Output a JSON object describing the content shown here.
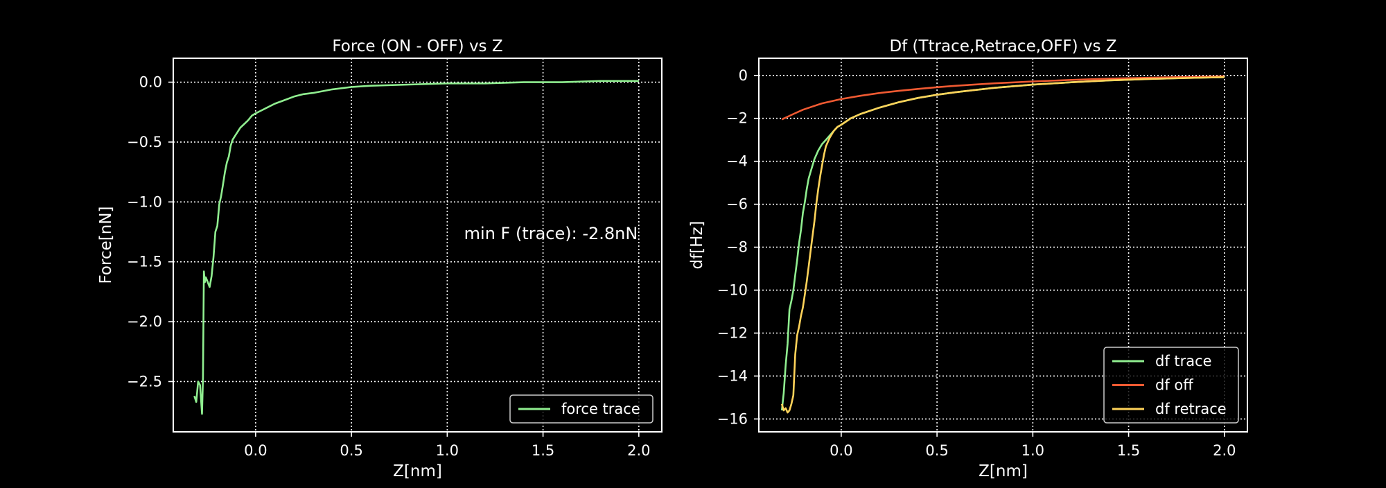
{
  "colors": {
    "background": "#000000",
    "axes": "#ffffff",
    "grid": "#ffffff",
    "trace": "#90ee90",
    "off": "#f05a32",
    "retrace": "#ffd35a"
  },
  "chart_data": [
    {
      "type": "line",
      "title": "Force (ON - OFF) vs Z",
      "xlabel": "Z[nm]",
      "ylabel": "Force[nN]",
      "xlim": [
        -0.43,
        2.12
      ],
      "ylim": [
        -2.92,
        0.2
      ],
      "xticks": [
        0.0,
        0.5,
        1.0,
        1.5,
        2.0
      ],
      "xtick_labels": [
        "0.0",
        "0.5",
        "1.0",
        "1.5",
        "2.0"
      ],
      "yticks": [
        0.0,
        -0.5,
        -1.0,
        -1.5,
        -2.0,
        -2.5
      ],
      "ytick_labels": [
        "0.0",
        "−0.5",
        "−1.0",
        "−1.5",
        "−2.0",
        "−2.5"
      ],
      "grid": true,
      "legend": "lower-right",
      "annotation": "min F (trace): -2.8nN",
      "series": [
        {
          "name": "force trace",
          "color": "#90ee90",
          "x": [
            -0.32,
            -0.31,
            -0.3,
            -0.29,
            -0.28,
            -0.275,
            -0.27,
            -0.265,
            -0.26,
            -0.25,
            -0.24,
            -0.23,
            -0.22,
            -0.21,
            -0.2,
            -0.19,
            -0.18,
            -0.17,
            -0.16,
            -0.15,
            -0.14,
            -0.13,
            -0.12,
            -0.1,
            -0.08,
            -0.06,
            -0.04,
            -0.02,
            0.0,
            0.05,
            0.1,
            0.15,
            0.2,
            0.25,
            0.3,
            0.4,
            0.5,
            0.6,
            0.8,
            1.0,
            1.2,
            1.4,
            1.6,
            1.8,
            2.0
          ],
          "y": [
            -2.62,
            -2.67,
            -2.5,
            -2.53,
            -2.77,
            -2.47,
            -1.58,
            -1.67,
            -1.63,
            -1.67,
            -1.71,
            -1.62,
            -1.46,
            -1.25,
            -1.2,
            -1.02,
            -0.95,
            -0.85,
            -0.75,
            -0.67,
            -0.62,
            -0.53,
            -0.48,
            -0.43,
            -0.38,
            -0.35,
            -0.32,
            -0.28,
            -0.26,
            -0.22,
            -0.18,
            -0.15,
            -0.12,
            -0.1,
            -0.09,
            -0.06,
            -0.04,
            -0.03,
            -0.02,
            -0.01,
            -0.01,
            0.0,
            0.0,
            0.01,
            0.01
          ]
        }
      ]
    },
    {
      "type": "line",
      "title": "Df (Ttrace,Retrace,OFF) vs Z",
      "xlabel": "Z[nm]",
      "ylabel": "df[Hz]",
      "xlim": [
        -0.43,
        2.12
      ],
      "ylim": [
        -16.6,
        0.8
      ],
      "xticks": [
        0.0,
        0.5,
        1.0,
        1.5,
        2.0
      ],
      "xtick_labels": [
        "0.0",
        "0.5",
        "1.0",
        "1.5",
        "2.0"
      ],
      "yticks": [
        0,
        -2,
        -4,
        -6,
        -8,
        -10,
        -12,
        -14,
        -16
      ],
      "ytick_labels": [
        "0",
        "−2",
        "−4",
        "−6",
        "−8",
        "−10",
        "−12",
        "−14",
        "−16"
      ],
      "grid": true,
      "legend": "lower-right",
      "series": [
        {
          "name": "df trace",
          "color": "#90ee90",
          "x": [
            -0.31,
            -0.3,
            -0.29,
            -0.28,
            -0.27,
            -0.26,
            -0.25,
            -0.24,
            -0.23,
            -0.22,
            -0.21,
            -0.2,
            -0.19,
            -0.18,
            -0.17,
            -0.16,
            -0.15,
            -0.14,
            -0.12,
            -0.1,
            -0.08,
            -0.06,
            -0.04,
            -0.02,
            0.0,
            0.05,
            0.1,
            0.2,
            0.3,
            0.4,
            0.5,
            0.6,
            0.8,
            1.0,
            1.2,
            1.4,
            1.6,
            1.8,
            2.0
          ],
          "y": [
            -15.6,
            -14.8,
            -13.5,
            -12.5,
            -10.9,
            -10.5,
            -10.0,
            -9.3,
            -8.6,
            -7.8,
            -7.2,
            -6.4,
            -5.9,
            -5.3,
            -4.8,
            -4.5,
            -4.2,
            -3.9,
            -3.5,
            -3.2,
            -3.0,
            -2.8,
            -2.6,
            -2.4,
            -2.3,
            -2.0,
            -1.8,
            -1.5,
            -1.25,
            -1.05,
            -0.9,
            -0.78,
            -0.58,
            -0.43,
            -0.32,
            -0.23,
            -0.17,
            -0.12,
            -0.08
          ]
        },
        {
          "name": "df off",
          "color": "#f05a32",
          "x": [
            -0.31,
            -0.25,
            -0.2,
            -0.15,
            -0.1,
            -0.05,
            0.0,
            0.1,
            0.2,
            0.3,
            0.4,
            0.5,
            0.6,
            0.8,
            1.0,
            1.2,
            1.4,
            1.6,
            1.8,
            2.0
          ],
          "y": [
            -2.05,
            -1.8,
            -1.6,
            -1.45,
            -1.3,
            -1.2,
            -1.1,
            -0.95,
            -0.82,
            -0.72,
            -0.63,
            -0.55,
            -0.48,
            -0.37,
            -0.28,
            -0.21,
            -0.15,
            -0.11,
            -0.07,
            -0.04
          ]
        },
        {
          "name": "df retrace",
          "color": "#ffd35a",
          "x": [
            -0.31,
            -0.3,
            -0.29,
            -0.28,
            -0.27,
            -0.26,
            -0.25,
            -0.24,
            -0.23,
            -0.22,
            -0.21,
            -0.2,
            -0.19,
            -0.18,
            -0.17,
            -0.16,
            -0.15,
            -0.14,
            -0.13,
            -0.12,
            -0.11,
            -0.1,
            -0.09,
            -0.08,
            -0.06,
            -0.04,
            -0.02,
            0.0,
            0.05,
            0.1,
            0.2,
            0.3,
            0.4,
            0.5,
            0.6,
            0.8,
            1.0,
            1.2,
            1.4,
            1.6,
            1.8,
            2.0
          ],
          "y": [
            -15.3,
            -15.6,
            -15.5,
            -15.7,
            -15.6,
            -15.3,
            -14.9,
            -13.0,
            -12.1,
            -11.7,
            -11.2,
            -10.8,
            -10.2,
            -9.6,
            -8.9,
            -8.2,
            -7.5,
            -6.8,
            -6.0,
            -5.3,
            -4.7,
            -4.2,
            -3.7,
            -3.3,
            -2.9,
            -2.6,
            -2.4,
            -2.3,
            -2.0,
            -1.8,
            -1.5,
            -1.25,
            -1.05,
            -0.9,
            -0.78,
            -0.58,
            -0.43,
            -0.32,
            -0.23,
            -0.17,
            -0.12,
            -0.08
          ]
        }
      ]
    }
  ]
}
